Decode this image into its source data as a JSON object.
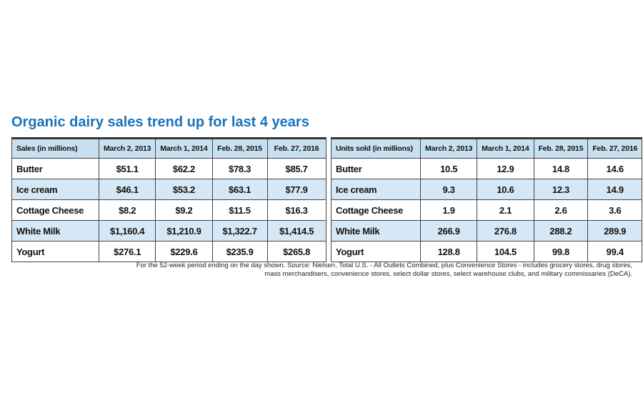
{
  "title": "Organic dairy sales trend up for last 4 years",
  "tables": [
    {
      "header": [
        "Sales (in millions)",
        "March 2, 2013",
        "March 1, 2014",
        "Feb. 28, 2015",
        "Feb. 27, 2016"
      ],
      "rows": [
        [
          "Butter",
          "$51.1",
          "$62.2",
          "$78.3",
          "$85.7"
        ],
        [
          "Ice cream",
          "$46.1",
          "$53.2",
          "$63.1",
          "$77.9"
        ],
        [
          "Cottage Cheese",
          "$8.2",
          "$9.2",
          "$11.5",
          "$16.3"
        ],
        [
          "White Milk",
          "$1,160.4",
          "$1,210.9",
          "$1,322.7",
          "$1,414.5"
        ],
        [
          "Yogurt",
          "$276.1",
          "$229.6",
          "$235.9",
          "$265.8"
        ]
      ]
    },
    {
      "header": [
        "Units sold (in millions)",
        "March 2, 2013",
        "March 1, 2014",
        "Feb. 28, 2015",
        "Feb. 27, 2016"
      ],
      "rows": [
        [
          "Butter",
          "10.5",
          "12.9",
          "14.8",
          "14.6"
        ],
        [
          "Ice cream",
          "9.3",
          "10.6",
          "12.3",
          "14.9"
        ],
        [
          "Cottage Cheese",
          "1.9",
          "2.1",
          "2.6",
          "3.6"
        ],
        [
          "White Milk",
          "266.9",
          "276.8",
          "288.2",
          "289.9"
        ],
        [
          "Yogurt",
          "128.8",
          "104.5",
          "99.8",
          "99.4"
        ]
      ]
    }
  ],
  "footnote": [
    "For the 52-week period ending on the day shown. Source: Nielsen. Total U.S. - All Outlets Combined, plus Convenience Stores - includes grocery stores, drug stores,",
    "mass merchandisers, convenience stores, select dollar stores, select warehouse clubs, and military commissaries (DeCA)."
  ]
}
